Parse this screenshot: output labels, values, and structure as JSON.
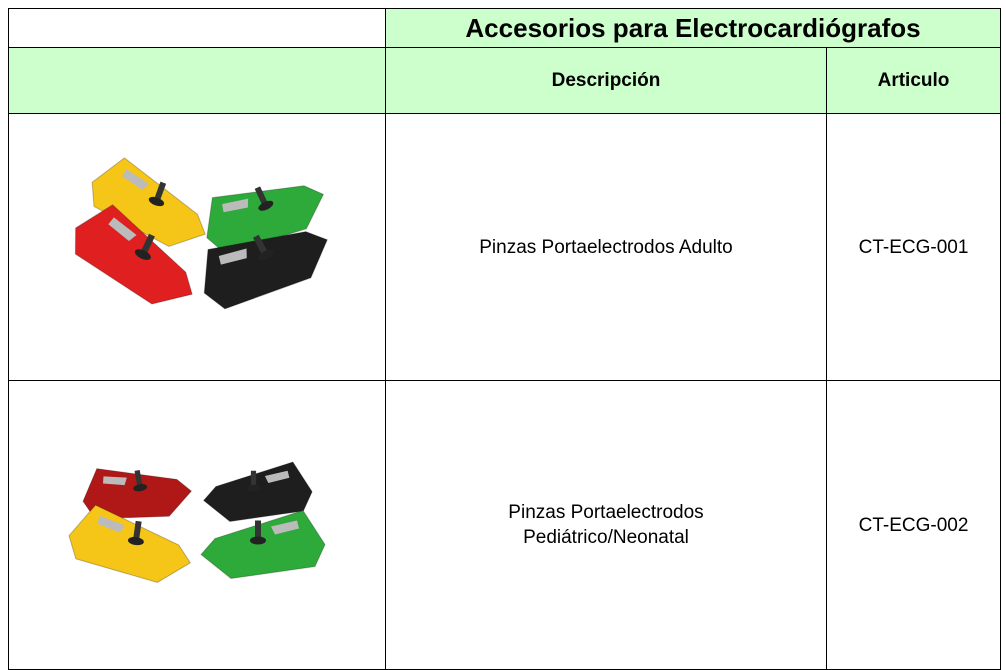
{
  "table": {
    "title": "Accesorios para Electrocardiógrafos",
    "columns": [
      "Descripción",
      "Articulo"
    ],
    "rows": [
      [
        "Pinzas Portaelectrodos Adulto",
        "CT-ECG-001"
      ],
      [
        "Pinzas Portaelectrodos Pediátrico/Neonatal",
        "CT-ECG-002"
      ]
    ]
  }
}
